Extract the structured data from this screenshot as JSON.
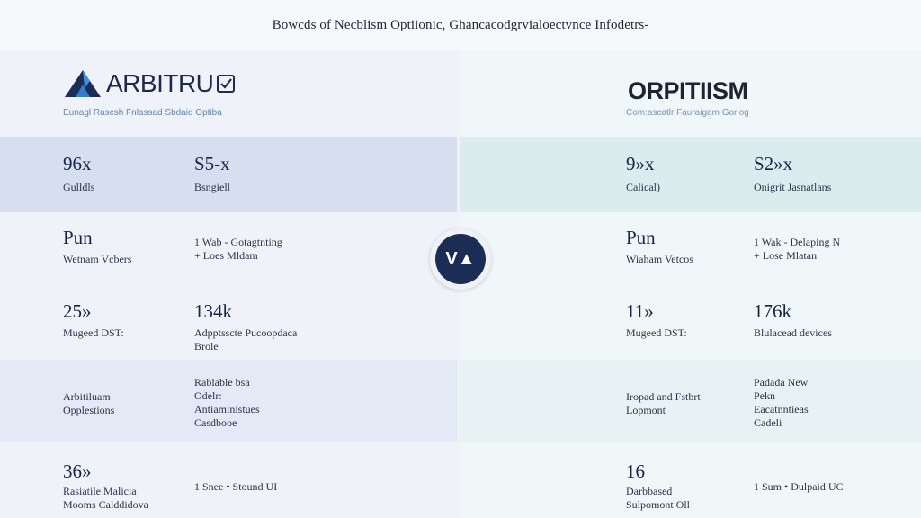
{
  "header": {
    "title": "Bowcds of Necblism Optiionic, Ghancacodgrvialoectvnce Infodetrs-"
  },
  "vs_badge": {
    "label": "V▲"
  },
  "left": {
    "brand": {
      "name": "ARBITRU",
      "tagline": "Eunagl Rascsh Fnlassad Sbdaid Optiba"
    },
    "rows": [
      {
        "a_big": "96x",
        "a_small": "Gulldls",
        "b_big": "S5-x",
        "b_small": "Bsngiell"
      },
      {
        "a_big": "Pun",
        "a_small": "Wetnam Vcbers",
        "b_lines": [
          "1 Wab - Gotagtnting",
          "+ Loes Mldam"
        ]
      },
      {
        "a_big": "25»",
        "a_small": "Mugeed DST:",
        "b_big": "134k",
        "b_lines": [
          "Adpptsscte Pucoopdaca",
          "Brole"
        ]
      },
      {
        "a_lines": [
          "Arbitiluam",
          "Opplestions"
        ],
        "b_lines": [
          "Rablable bsa",
          "Odelr:",
          "Antiaministues",
          "Casdbooe"
        ]
      },
      {
        "a_big": "36»",
        "a_lines": [
          "Rasiatile Malicia",
          "Mooms Calddidova"
        ],
        "b_lines": [
          "1 Snee • Stound UI"
        ]
      }
    ]
  },
  "right": {
    "brand": {
      "name": "ORPITIISM",
      "tagline": "Com:ascatlr Fauraigam Gorlog"
    },
    "rows": [
      {
        "a_big": "9»x",
        "a_small": "Calical)",
        "b_big": "S2»x",
        "b_small": "Onigrit Jasnatlans"
      },
      {
        "a_big": "Pun",
        "a_small": "Wiaham Vetcos",
        "b_lines": [
          "1 Wak - Delaping N",
          "+ Lose Mlatan"
        ]
      },
      {
        "a_big": "11»",
        "a_small": "Mugeed DST:",
        "b_big": "176k",
        "b_lines": [
          "Blulacead devices"
        ]
      },
      {
        "a_lines": [
          "Iropad and Fstbrt",
          "Lopmont"
        ],
        "b_lines": [
          "Padada New",
          "Pekn",
          "Eacatnntieas",
          "Cadeli"
        ]
      },
      {
        "a_big": "16",
        "a_lines": [
          "Darbbased",
          "Sulpomont Oll"
        ],
        "b_lines": [
          "1 Sum • Dulpaid UC"
        ]
      }
    ]
  },
  "colors": {
    "left_bg": "#e3e9f5",
    "right_bg": "#e6f2f3",
    "accent_navy": "#1b2c55",
    "arbitrum_blue": "#2f6fb5"
  }
}
